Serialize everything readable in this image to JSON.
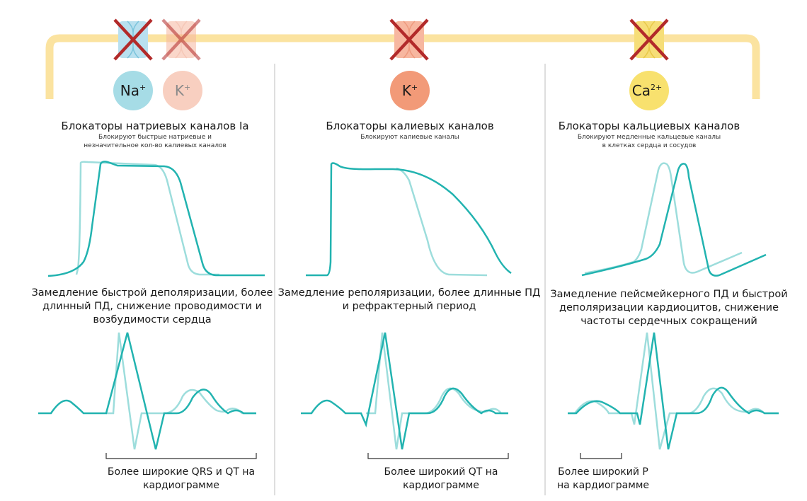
{
  "colors": {
    "bracket": "#FBE3A0",
    "divider": "#C8C8C8",
    "curve_dark": "#22B3B0",
    "curve_light": "#9DDDDC",
    "cross": "#B22A2A",
    "na": "#A6DCE6",
    "na_channel": "#B9E0EF",
    "k_faded": "#F8CFC0",
    "k": "#F29A78",
    "k_channel": "#F7B7A0",
    "ca": "#F8E16E",
    "ca_channel": "#F6DE78"
  },
  "icons": [
    "sodium-channel-icon",
    "potassium-channel-icon",
    "calcium-channel-icon",
    "blocked-cross-icon"
  ],
  "columns": [
    {
      "ions": [
        {
          "name": "Na",
          "sup": "+",
          "color_key": "na",
          "faded": false
        },
        {
          "name": "K",
          "sup": "+",
          "color_key": "k_faded",
          "faded": true
        }
      ],
      "title": "Блокаторы натриевых каналов Ia",
      "subtitle": [
        "Блокируют быстрые натриевые и",
        "незначительное кол-во калиевых каналов"
      ],
      "effect": [
        "Замедление быстрой деполяризации, более",
        "длинный ПД, снижение проводимости и",
        "возбудимости сердца"
      ],
      "ecg_note": [
        "Более широкие QRS и QT на",
        "кардиограмме"
      ]
    },
    {
      "ions": [
        {
          "name": "K",
          "sup": "+",
          "color_key": "k",
          "faded": false
        }
      ],
      "title": "Блокаторы калиевых каналов",
      "subtitle": [
        "Блокируют калиевые каналы"
      ],
      "effect": [
        "Замедление реполяризации, более длинные ПД",
        "и рефрактерный период"
      ],
      "ecg_note": [
        "Более широкий QT  на",
        "кардиограмме"
      ]
    },
    {
      "ions": [
        {
          "name": "Ca",
          "sup": "2+",
          "color_key": "ca",
          "faded": false
        }
      ],
      "title": "Блокаторы кальциевых каналов",
      "subtitle": [
        "Блокируют медленные кальцевые каналы",
        "в клетках сердца и сосудов"
      ],
      "effect": [
        "Замедление пейсмейкерного ПД и быстрой",
        "деполяризации кардиоцитов, снижение",
        "частоты сердечных сокращений"
      ],
      "ecg_note": [
        "Более широкий P",
        "на кардиограмме"
      ]
    }
  ]
}
